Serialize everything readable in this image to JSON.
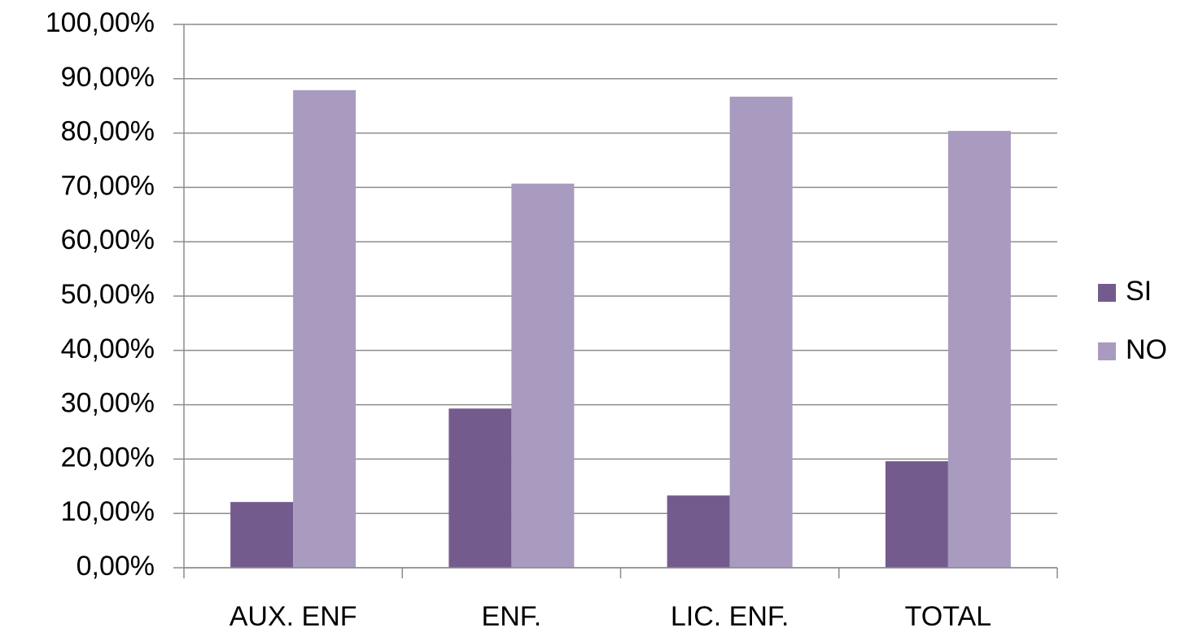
{
  "chart_data": {
    "type": "bar",
    "categories": [
      "AUX. ENF",
      "ENF.",
      "LIC. ENF.",
      "TOTAL"
    ],
    "series": [
      {
        "name": "SI",
        "color": "#745b8e",
        "values": [
          12.1,
          29.3,
          13.3,
          19.6
        ]
      },
      {
        "name": "NO",
        "color": "#a89bbf",
        "values": [
          87.9,
          70.7,
          86.7,
          80.4
        ]
      }
    ],
    "ylim": [
      0,
      100
    ],
    "yticks": [
      {
        "value": 0,
        "label": "0,00%"
      },
      {
        "value": 10,
        "label": "10,00%"
      },
      {
        "value": 20,
        "label": "20,00%"
      },
      {
        "value": 30,
        "label": "30,00%"
      },
      {
        "value": 40,
        "label": "40,00%"
      },
      {
        "value": 50,
        "label": "50,00%"
      },
      {
        "value": 60,
        "label": "60,00%"
      },
      {
        "value": 70,
        "label": "70,00%"
      },
      {
        "value": 80,
        "label": "80,00%"
      },
      {
        "value": 90,
        "label": "90,00%"
      },
      {
        "value": 100,
        "label": "100,00%"
      }
    ],
    "grid": true,
    "legend": "right"
  }
}
